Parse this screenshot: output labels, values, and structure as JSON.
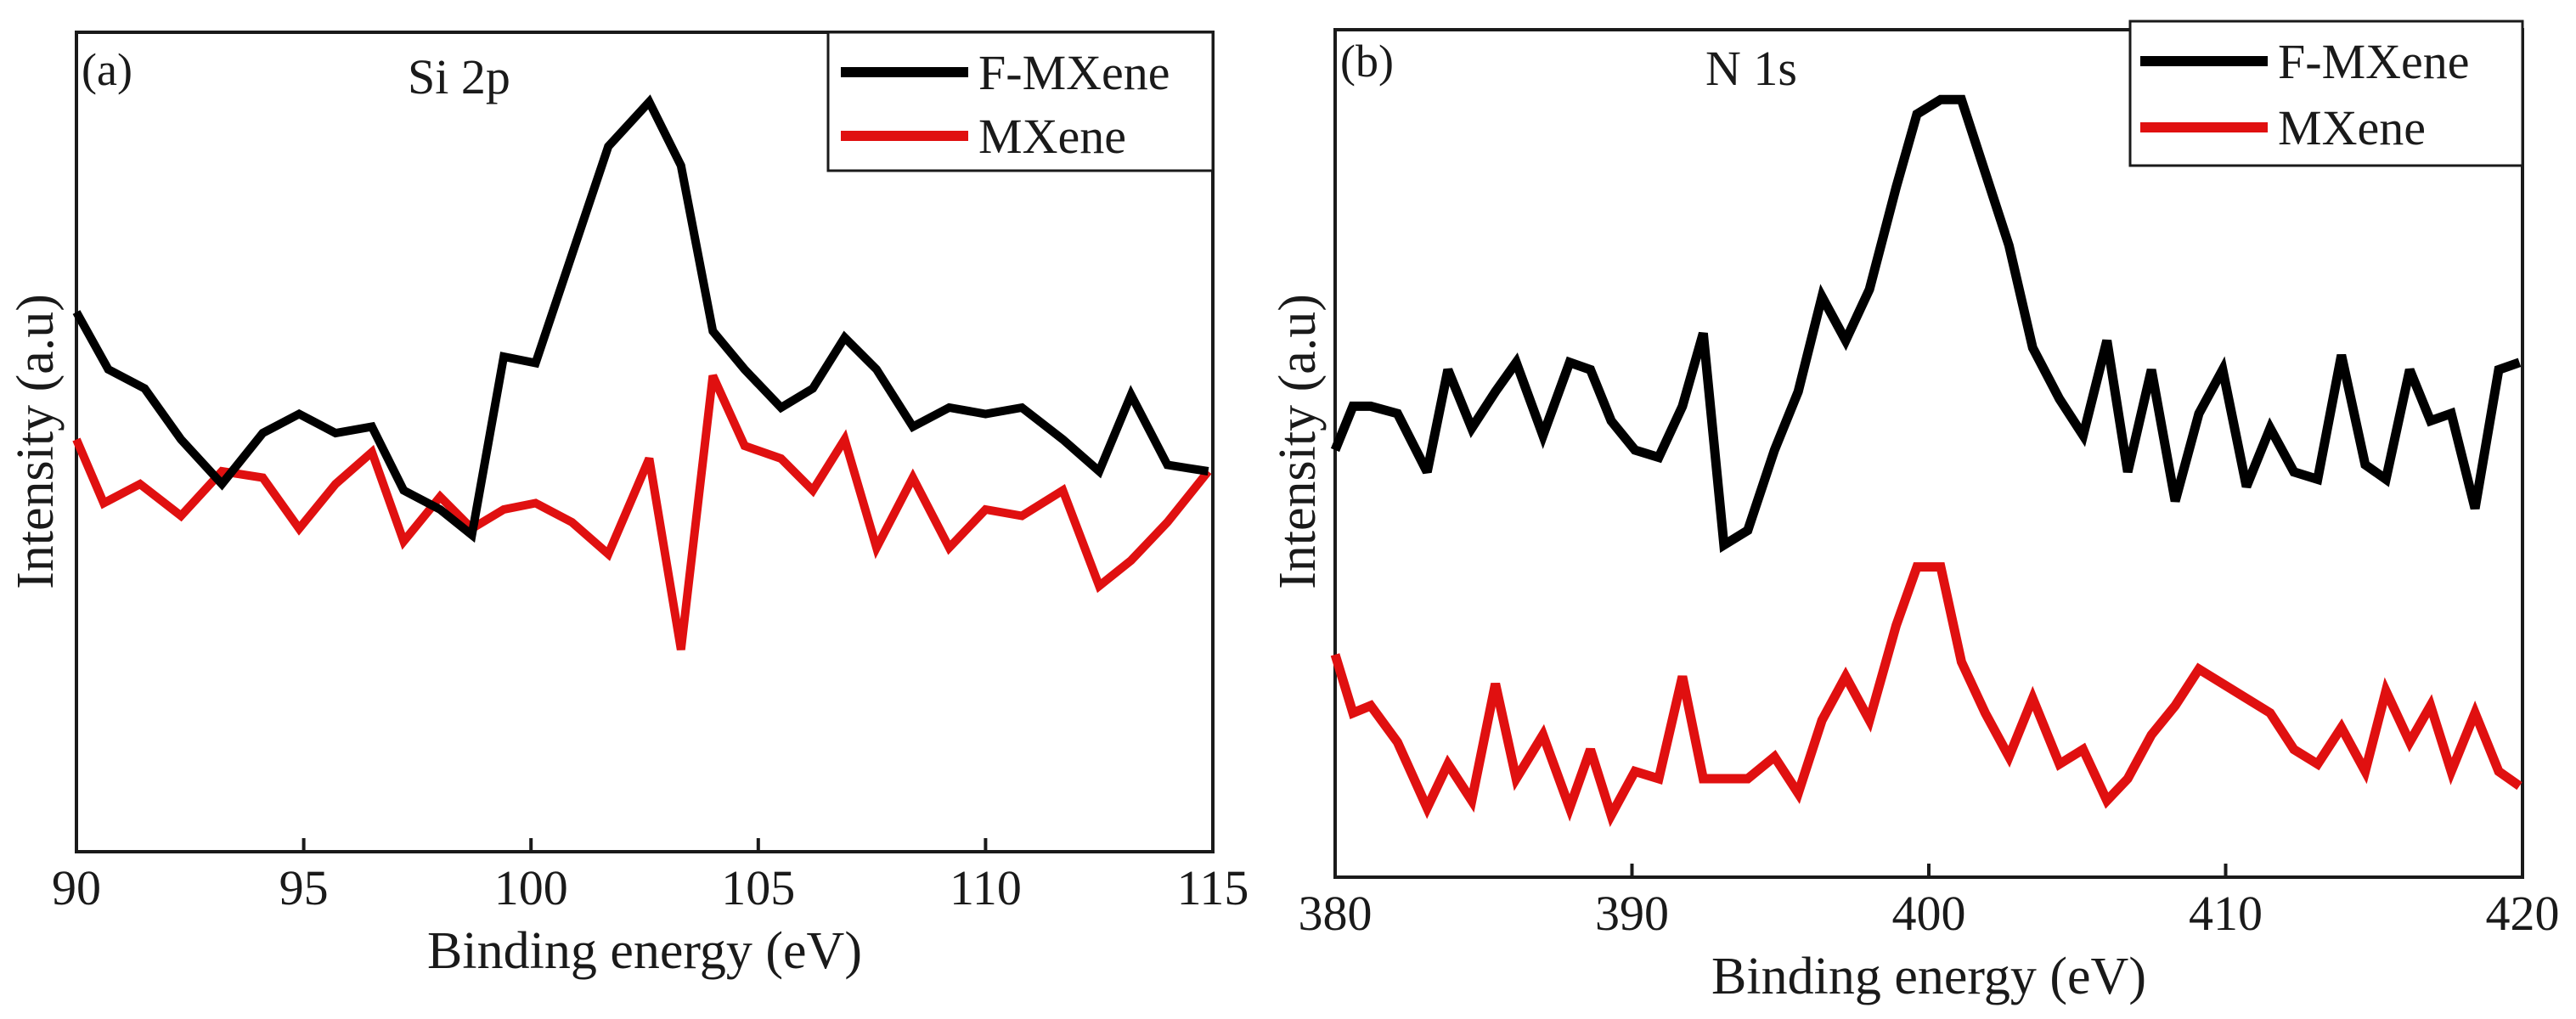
{
  "chart_data": [
    {
      "type": "line",
      "tag": "(a)",
      "title": "Si 2p",
      "xlabel": "Binding energy (eV)",
      "ylabel": "Intensity (a.u)",
      "xlim": [
        90,
        115
      ],
      "ylim": [
        0,
        100
      ],
      "xticks": [
        90,
        95,
        100,
        105,
        110,
        115
      ],
      "legend_position": "top-right",
      "series": [
        {
          "name": "F-MXene",
          "color": "#000000",
          "x": [
            90,
            90.7,
            91.5,
            92.3,
            93.2,
            94.1,
            94.9,
            95.7,
            96.5,
            97.2,
            98.0,
            98.7,
            99.4,
            100.1,
            100.9,
            101.7,
            102.6,
            103.3,
            104.0,
            104.7,
            105.5,
            106.2,
            106.9,
            107.6,
            108.4,
            109.2,
            110.0,
            110.8,
            111.7,
            112.5,
            113.2,
            114.0,
            114.9
          ],
          "y": [
            67,
            58,
            55,
            47,
            40,
            48,
            51,
            48,
            49,
            39,
            36,
            32,
            60,
            59,
            76,
            93,
            100,
            90,
            64,
            58,
            52,
            55,
            63,
            58,
            49,
            52,
            51,
            52,
            47,
            42,
            54,
            43,
            42
          ]
        },
        {
          "name": "MXene",
          "color": "#e01010",
          "x": [
            90,
            90.6,
            91.4,
            92.3,
            93.2,
            94.1,
            94.9,
            95.7,
            96.5,
            97.2,
            98.0,
            98.7,
            99.4,
            100.1,
            100.9,
            101.7,
            102.6,
            103.3,
            104.0,
            104.7,
            105.5,
            106.2,
            106.9,
            107.6,
            108.4,
            109.2,
            110.0,
            110.8,
            111.7,
            112.5,
            113.2,
            114.0,
            114.9
          ],
          "y": [
            47,
            37,
            40,
            35,
            42,
            41,
            33,
            40,
            45,
            31,
            38,
            33,
            36,
            37,
            34,
            29,
            44,
            14,
            57,
            46,
            44,
            39,
            47,
            30,
            41,
            30,
            36,
            35,
            39,
            24,
            28,
            34,
            42
          ]
        }
      ]
    },
    {
      "type": "line",
      "tag": "(b)",
      "title": "N 1s",
      "xlabel": "Binding energy (eV)",
      "ylabel": "Intensity (a.u)",
      "xlim": [
        380,
        420
      ],
      "ylim": [
        0,
        100
      ],
      "xticks": [
        380,
        390,
        400,
        410,
        420
      ],
      "legend_position": "top-right",
      "series": [
        {
          "name": "F-MXene",
          "color": "#000000",
          "x": [
            380,
            380.6,
            381.2,
            382.1,
            383.1,
            383.8,
            384.6,
            385.4,
            386.1,
            387.0,
            387.9,
            388.6,
            389.3,
            390.1,
            390.9,
            391.7,
            392.4,
            393.1,
            393.9,
            394.8,
            395.6,
            396.4,
            397.2,
            398.0,
            398.9,
            399.6,
            400.4,
            401.1,
            401.9,
            402.7,
            403.5,
            404.4,
            405.2,
            406.0,
            406.7,
            407.5,
            408.3,
            409.1,
            409.9,
            410.7,
            411.5,
            412.3,
            413.1,
            413.9,
            414.7,
            415.4,
            416.2,
            416.9,
            417.6,
            418.4,
            419.2,
            419.9
          ],
          "y": [
            50,
            56,
            56,
            55,
            47,
            61,
            53,
            58,
            62,
            52,
            62,
            61,
            54,
            50,
            49,
            56,
            66,
            37,
            39,
            50,
            58,
            71,
            65,
            72,
            86,
            96,
            98,
            98,
            88,
            78,
            64,
            57,
            52,
            65,
            47,
            61,
            43,
            55,
            61,
            45,
            53,
            47,
            46,
            63,
            48,
            46,
            61,
            54,
            55,
            42,
            61,
            62
          ]
        },
        {
          "name": "MXene",
          "color": "#e01010",
          "x": [
            380,
            380.6,
            381.2,
            382.1,
            383.1,
            383.8,
            384.6,
            385.4,
            386.1,
            387.0,
            387.9,
            388.6,
            389.3,
            390.1,
            390.9,
            391.7,
            392.4,
            393.1,
            393.9,
            394.8,
            395.6,
            396.4,
            397.2,
            398.0,
            398.9,
            399.6,
            400.4,
            401.1,
            401.9,
            402.7,
            403.5,
            404.4,
            405.2,
            406.0,
            406.7,
            407.5,
            408.3,
            409.1,
            409.9,
            410.7,
            411.5,
            412.3,
            413.1,
            413.9,
            414.7,
            415.4,
            416.2,
            416.9,
            417.6,
            418.4,
            419.2,
            419.9
          ],
          "y": [
            22,
            14,
            15,
            10,
            1,
            7,
            2,
            18,
            5,
            11,
            1,
            9,
            0,
            6,
            5,
            19,
            5,
            5,
            5,
            8,
            3,
            13,
            19,
            13,
            26,
            34,
            34,
            21,
            14,
            8,
            16,
            7,
            9,
            2,
            5,
            11,
            15,
            20,
            18,
            16,
            14,
            9,
            7,
            12,
            6,
            17,
            10,
            15,
            6,
            14,
            6,
            4
          ]
        }
      ]
    }
  ]
}
